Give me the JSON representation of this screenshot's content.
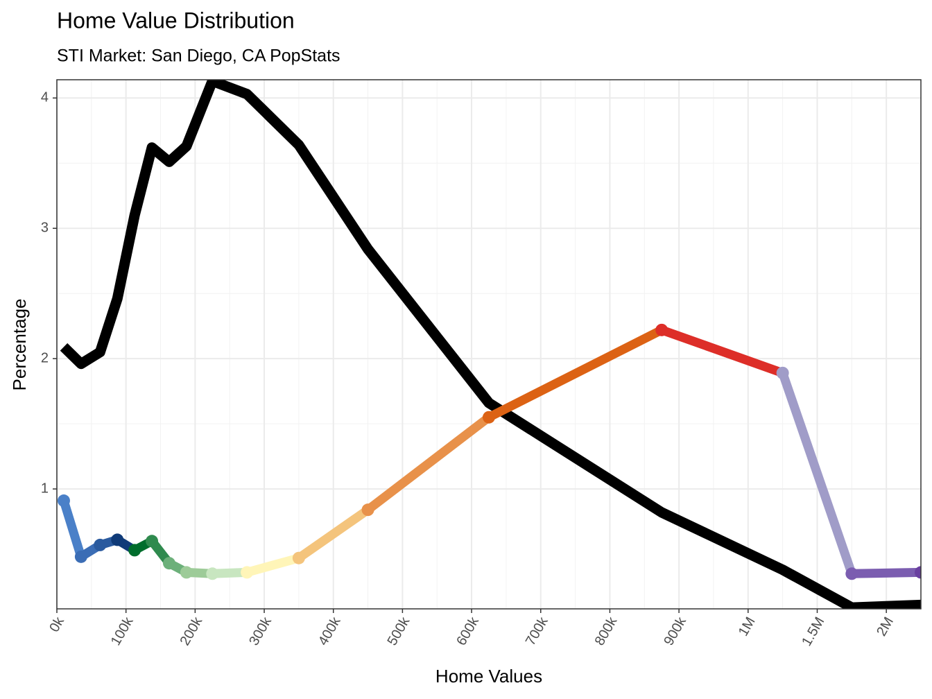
{
  "chart_data": {
    "type": "line",
    "title": "Home Value Distribution",
    "subtitle": "STI Market: San Diego, CA PopStats",
    "x_label": "Home Values",
    "y_label": "Percentage",
    "x_scale": "tick-spaced",
    "x": [
      10000,
      35000,
      62500,
      87500,
      112500,
      137500,
      162500,
      187500,
      225000,
      275000,
      350000,
      450000,
      625000,
      875000,
      1250000,
      1750000,
      2250000
    ],
    "series": [
      {
        "color": "#000000",
        "values": [
          2.09,
          1.96,
          2.05,
          2.46,
          3.1,
          3.62,
          3.51,
          3.63,
          4.13,
          4.03,
          3.64,
          2.84,
          1.66,
          0.82,
          0.38,
          0.09,
          0.11
        ]
      },
      {
        "markers": true,
        "colors": [
          "#4a80c8",
          "#3b6db5",
          "#2a5a9e",
          "#0f3a78",
          "#006d2c",
          "#2f8a4e",
          "#6cb07a",
          "#9dcb98",
          "#c8e6c0",
          "#fff5b8",
          "#f4c47c",
          "#e8914a",
          "#dc6214",
          "#dd2e28",
          "#a09cc8",
          "#7b5db0",
          "#6a40a0"
        ],
        "values": [
          0.91,
          0.48,
          0.57,
          0.61,
          0.53,
          0.6,
          0.43,
          0.36,
          0.35,
          0.36,
          0.47,
          0.84,
          1.55,
          2.22,
          1.89,
          0.35,
          0.36
        ]
      }
    ],
    "xlim": [
      0,
      2250000
    ],
    "ylim": [
      0.08,
      4.14
    ],
    "xticks": [
      {
        "value": 0,
        "label": "0k"
      },
      {
        "value": 100000,
        "label": "100k"
      },
      {
        "value": 200000,
        "label": "200k"
      },
      {
        "value": 300000,
        "label": "300k"
      },
      {
        "value": 400000,
        "label": "400k"
      },
      {
        "value": 500000,
        "label": "500k"
      },
      {
        "value": 600000,
        "label": "600k"
      },
      {
        "value": 700000,
        "label": "700k"
      },
      {
        "value": 800000,
        "label": "800k"
      },
      {
        "value": 900000,
        "label": "900k"
      },
      {
        "value": 1000000,
        "label": "1M"
      },
      {
        "value": 1500000,
        "label": "1.5M"
      },
      {
        "value": 2000000,
        "label": "2M"
      }
    ],
    "yticks": [
      1,
      2,
      3,
      4
    ],
    "grid": true
  }
}
